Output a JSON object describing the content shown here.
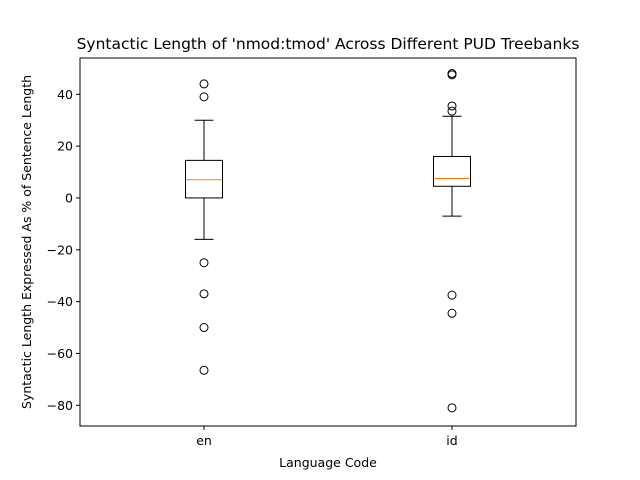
{
  "chart_data": {
    "type": "box",
    "title": "Syntactic Length of 'nmod:tmod' Across Different PUD Treebanks",
    "xlabel": "Language Code",
    "ylabel": "Syntactic Length Expressed As % of Sentence Length",
    "ylim": [
      -88,
      54
    ],
    "yticks": [
      40,
      20,
      0,
      -20,
      -40,
      -60,
      -80
    ],
    "grid": false,
    "colors": {
      "box": "#000000",
      "median": "#ff7f0e",
      "background": "#ffffff"
    },
    "categories": [
      "en",
      "id"
    ],
    "boxes": [
      {
        "name": "en",
        "whisker_low": -16,
        "q1": 0,
        "median": 7,
        "q3": 14.5,
        "whisker_high": 30,
        "outliers": [
          44,
          39,
          -25,
          -37,
          -50,
          -66.5
        ]
      },
      {
        "name": "id",
        "whisker_low": -7,
        "q1": 4.5,
        "median": 7.5,
        "q3": 16,
        "whisker_high": 31.5,
        "outliers": [
          48,
          47.5,
          35.5,
          33.5,
          -37.5,
          -44.5,
          -81
        ]
      }
    ]
  }
}
